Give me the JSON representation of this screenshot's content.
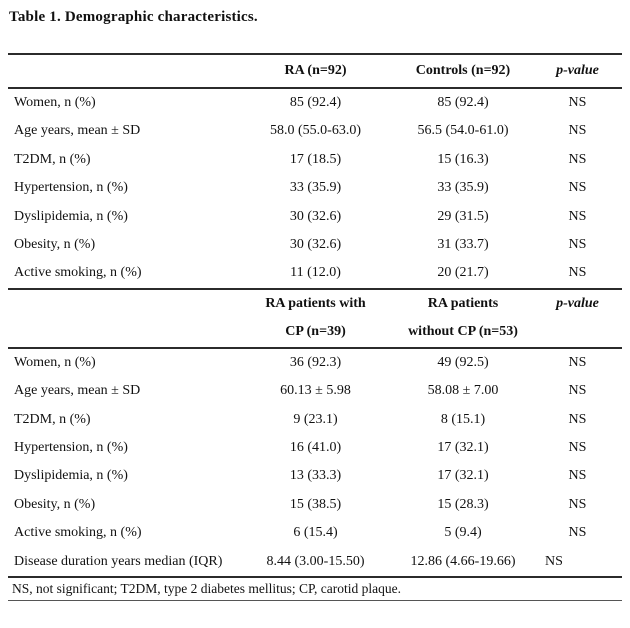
{
  "title": "Table 1. Demographic characteristics.",
  "colors": {
    "text": "#111111",
    "background": "#ffffff",
    "rule": "#2b2b2b"
  },
  "table": {
    "header1": {
      "col1": "",
      "col2": "RA (n=92)",
      "col3": "Controls (n=92)",
      "col4": "p-value"
    },
    "section1_rows": [
      {
        "label": "Women, n (%)",
        "v1": "85 (92.4)",
        "v2": "85 (92.4)",
        "p": "NS"
      },
      {
        "label": "Age years, mean ± SD",
        "v1": "58.0 (55.0-63.0)",
        "v2": "56.5 (54.0-61.0)",
        "p": "NS"
      },
      {
        "label": "T2DM, n (%)",
        "v1": "17 (18.5)",
        "v2": "15 (16.3)",
        "p": "NS"
      },
      {
        "label": "Hypertension, n (%)",
        "v1": "33 (35.9)",
        "v2": "33 (35.9)",
        "p": "NS"
      },
      {
        "label": "Dyslipidemia, n (%)",
        "v1": "30 (32.6)",
        "v2": "29 (31.5)",
        "p": "NS"
      },
      {
        "label": "Obesity, n (%)",
        "v1": "30 (32.6)",
        "v2": "31 (33.7)",
        "p": "NS"
      },
      {
        "label": "Active smoking, n (%)",
        "v1": "11 (12.0)",
        "v2": "20 (21.7)",
        "p": "NS"
      }
    ],
    "header2": {
      "col2_line1": "RA patients with",
      "col2_line2": "CP (n=39)",
      "col3_line1": "RA patients",
      "col3_line2": "without CP (n=53)",
      "col4": "p-value"
    },
    "section2_rows": [
      {
        "label": "Women, n (%)",
        "v1": "36 (92.3)",
        "v2": "49 (92.5)",
        "p": "NS"
      },
      {
        "label": "Age years, mean ± SD",
        "v1": "60.13 ± 5.98",
        "v2": "58.08 ± 7.00",
        "p": "NS"
      },
      {
        "label": "T2DM, n (%)",
        "v1": "9 (23.1)",
        "v2": "8 (15.1)",
        "p": "NS"
      },
      {
        "label": "Hypertension, n (%)",
        "v1": "16 (41.0)",
        "v2": "17 (32.1)",
        "p": "NS"
      },
      {
        "label": "Dyslipidemia, n (%)",
        "v1": "13 (33.3)",
        "v2": "17 (32.1)",
        "p": "NS"
      },
      {
        "label": "Obesity, n (%)",
        "v1": "15 (38.5)",
        "v2": "15 (28.3)",
        "p": "NS"
      },
      {
        "label": "Active smoking, n (%)",
        "v1": "6 (15.4)",
        "v2": "5 (9.4)",
        "p": "NS"
      },
      {
        "label": "Disease duration years median (IQR)",
        "v1": "8.44 (3.00-15.50)",
        "v2": "12.86 (4.66-19.66)",
        "p": "NS",
        "p_align": "left"
      }
    ],
    "footnote": "NS, not significant; T2DM, type 2 diabetes mellitus; CP, carotid plaque."
  }
}
